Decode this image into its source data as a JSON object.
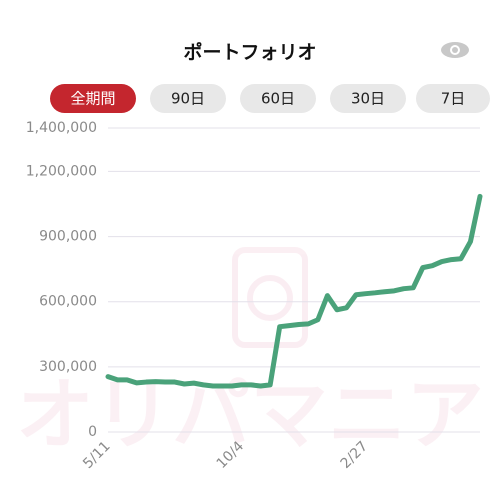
{
  "header": {
    "title": "ポートフォリオ"
  },
  "tabs": [
    "全期間",
    "90日",
    "60日",
    "30日",
    "7日"
  ],
  "watermark": "オリパマニア",
  "chart_data": {
    "type": "line",
    "color": "#4aa27a",
    "grid": true,
    "categories": [
      "5/11",
      null,
      null,
      null,
      null,
      null,
      null,
      null,
      null,
      null,
      null,
      null,
      null,
      null,
      "10/4",
      null,
      null,
      null,
      null,
      null,
      null,
      null,
      null,
      null,
      null,
      null,
      null,
      "2/27",
      null,
      null,
      null,
      null,
      null,
      null,
      null,
      null,
      null,
      null,
      null,
      null
    ],
    "values": [
      255000,
      240000,
      240000,
      226000,
      230000,
      232000,
      230000,
      230000,
      221000,
      225000,
      217000,
      212000,
      212000,
      212000,
      217000,
      217000,
      212000,
      217000,
      485000,
      490000,
      495000,
      498000,
      517000,
      628000,
      563000,
      572000,
      632000,
      637000,
      641000,
      646000,
      650000,
      660000,
      664000,
      757000,
      766000,
      785000,
      794000,
      798000,
      877000,
      1085000
    ],
    "ylim": [
      0,
      1400000
    ],
    "yticks": [
      0,
      {
        "value": 300000,
        "label": "300,000"
      },
      {
        "value": 600000,
        "label": "600,000"
      },
      {
        "value": 900000,
        "label": "900,000"
      },
      {
        "value": 1200000,
        "label": "1,200,000"
      },
      {
        "value": 1400000,
        "label": "1,400,000"
      }
    ]
  }
}
